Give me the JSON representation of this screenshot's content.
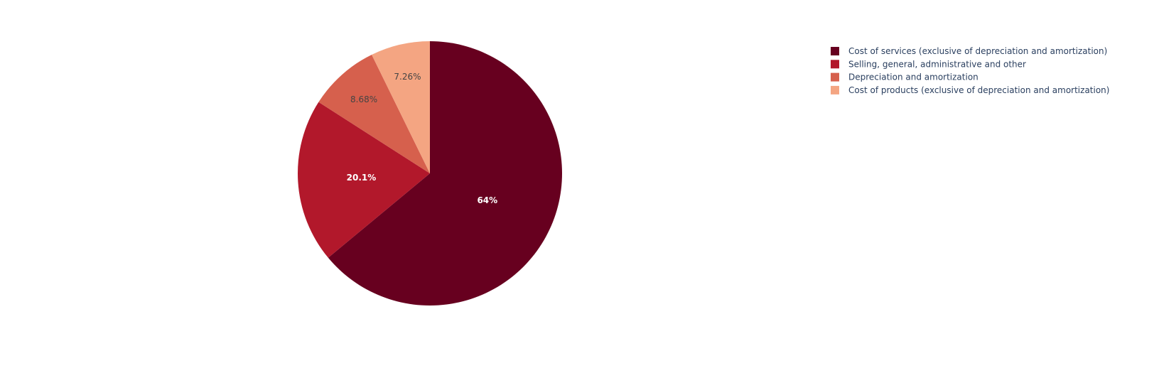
{
  "chart_data": {
    "type": "pie",
    "title": "",
    "legend_position": "top-right",
    "slices": [
      {
        "label": "Cost of services (exclusive of depreciation and amortization)",
        "percent": 64.0,
        "display": "64%",
        "color": "#67001f",
        "label_color": "#ffffff"
      },
      {
        "label": "Selling, general, administrative and other",
        "percent": 20.1,
        "display": "20.1%",
        "color": "#b2182b",
        "label_color": "#ffffff"
      },
      {
        "label": "Depreciation and amortization",
        "percent": 8.68,
        "display": "8.68%",
        "color": "#d6604d",
        "label_color": "#444444"
      },
      {
        "label": "Cost of products (exclusive of depreciation and amortization)",
        "percent": 7.26,
        "display": "7.26%",
        "color": "#f4a582",
        "label_color": "#444444"
      }
    ]
  }
}
